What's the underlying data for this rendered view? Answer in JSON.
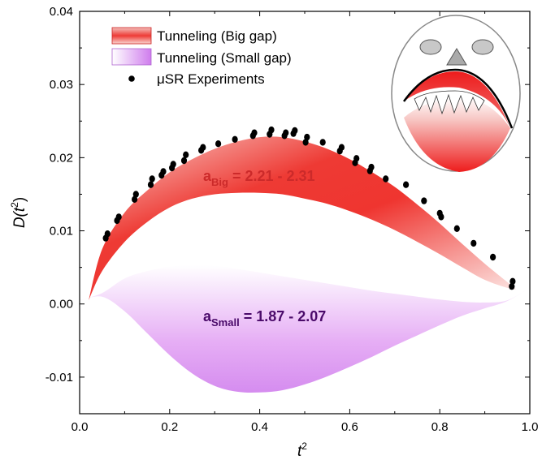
{
  "chart_data": {
    "type": "area",
    "xlabel": "t",
    "xlabel_sup": "2",
    "ylabel": "D(t",
    "ylabel_sup": "2",
    "ylabel_close": ")",
    "xlim": [
      0.0,
      1.0
    ],
    "ylim": [
      -0.015,
      0.04
    ],
    "xticks": [
      "0.0",
      "0.2",
      "0.4",
      "0.6",
      "0.8",
      "1.0"
    ],
    "yticks": [
      "-0.01",
      "0.00",
      "0.01",
      "0.02",
      "0.03",
      "0.04"
    ],
    "grid": false,
    "legend_position": "top-left",
    "series": [
      {
        "name": "Tunneling (Big gap)",
        "color": "#ee1c1c",
        "x": [
          0.02,
          0.05,
          0.1,
          0.15,
          0.2,
          0.25,
          0.3,
          0.35,
          0.4,
          0.45,
          0.5,
          0.55,
          0.6,
          0.65,
          0.7,
          0.75,
          0.8,
          0.85,
          0.9,
          0.95,
          0.97
        ],
        "upper": [
          0.0005,
          0.0075,
          0.0125,
          0.0155,
          0.018,
          0.0198,
          0.0212,
          0.0222,
          0.0228,
          0.0228,
          0.0222,
          0.0212,
          0.0198,
          0.018,
          0.016,
          0.0136,
          0.011,
          0.0082,
          0.0055,
          0.003,
          0.002
        ],
        "lower": [
          0.0005,
          0.0045,
          0.0085,
          0.0112,
          0.0132,
          0.0144,
          0.015,
          0.0152,
          0.0152,
          0.015,
          0.0144,
          0.0137,
          0.0127,
          0.0115,
          0.0101,
          0.0085,
          0.0068,
          0.005,
          0.0033,
          0.0022,
          0.002
        ],
        "annotation_main": "a",
        "annotation_sub": "Big",
        "annotation_rest": " = 2.21 - 2.31"
      },
      {
        "name": "Tunneling (Small gap)",
        "color": "#cc66ee",
        "x": [
          0.0,
          0.05,
          0.1,
          0.15,
          0.2,
          0.25,
          0.3,
          0.35,
          0.4,
          0.45,
          0.5,
          0.55,
          0.6,
          0.65,
          0.7,
          0.75,
          0.8,
          0.85,
          0.9,
          0.95,
          1.0
        ],
        "upper": [
          0.0005,
          0.0015,
          0.0035,
          0.0045,
          0.0051,
          0.0053,
          0.0052,
          0.0048,
          0.0043,
          0.0038,
          0.0033,
          0.0028,
          0.0023,
          0.0018,
          0.0014,
          0.001,
          0.0006,
          0.0003,
          0.0002,
          0.0005,
          0.0022
        ],
        "lower": [
          0.0005,
          0.001,
          -0.001,
          -0.004,
          -0.007,
          -0.0095,
          -0.0112,
          -0.012,
          -0.0121,
          -0.0118,
          -0.011,
          -0.0099,
          -0.0086,
          -0.0072,
          -0.0057,
          -0.0043,
          -0.0029,
          -0.0016,
          -0.0006,
          0.0004,
          0.0022
        ],
        "annotation_main": "a",
        "annotation_sub": "Small",
        "annotation_rest": " = 1.87 - 2.07"
      },
      {
        "name": "μSR Experiments",
        "color": "#000000",
        "type": "scatter",
        "points": [
          [
            0.058,
            0.009
          ],
          [
            0.062,
            0.0096
          ],
          [
            0.083,
            0.0114
          ],
          [
            0.087,
            0.0119
          ],
          [
            0.122,
            0.0143
          ],
          [
            0.125,
            0.015
          ],
          [
            0.158,
            0.0163
          ],
          [
            0.161,
            0.0171
          ],
          [
            0.182,
            0.0176
          ],
          [
            0.186,
            0.0181
          ],
          [
            0.205,
            0.0186
          ],
          [
            0.208,
            0.0191
          ],
          [
            0.232,
            0.0196
          ],
          [
            0.236,
            0.0204
          ],
          [
            0.27,
            0.021
          ],
          [
            0.274,
            0.0214
          ],
          [
            0.308,
            0.0219
          ],
          [
            0.345,
            0.0225
          ],
          [
            0.385,
            0.023
          ],
          [
            0.388,
            0.0234
          ],
          [
            0.422,
            0.0232
          ],
          [
            0.426,
            0.0238
          ],
          [
            0.455,
            0.023
          ],
          [
            0.458,
            0.0234
          ],
          [
            0.475,
            0.0233
          ],
          [
            0.478,
            0.0237
          ],
          [
            0.502,
            0.0221
          ],
          [
            0.505,
            0.0228
          ],
          [
            0.54,
            0.0221
          ],
          [
            0.578,
            0.0209
          ],
          [
            0.582,
            0.0214
          ],
          [
            0.612,
            0.0193
          ],
          [
            0.615,
            0.0199
          ],
          [
            0.645,
            0.0182
          ],
          [
            0.648,
            0.0187
          ],
          [
            0.68,
            0.0171
          ],
          [
            0.725,
            0.0163
          ],
          [
            0.765,
            0.0141
          ],
          [
            0.8,
            0.0124
          ],
          [
            0.803,
            0.0119
          ],
          [
            0.838,
            0.0103
          ],
          [
            0.875,
            0.0083
          ],
          [
            0.918,
            0.0064
          ],
          [
            0.96,
            0.0024
          ],
          [
            0.962,
            0.0031
          ]
        ]
      }
    ]
  }
}
